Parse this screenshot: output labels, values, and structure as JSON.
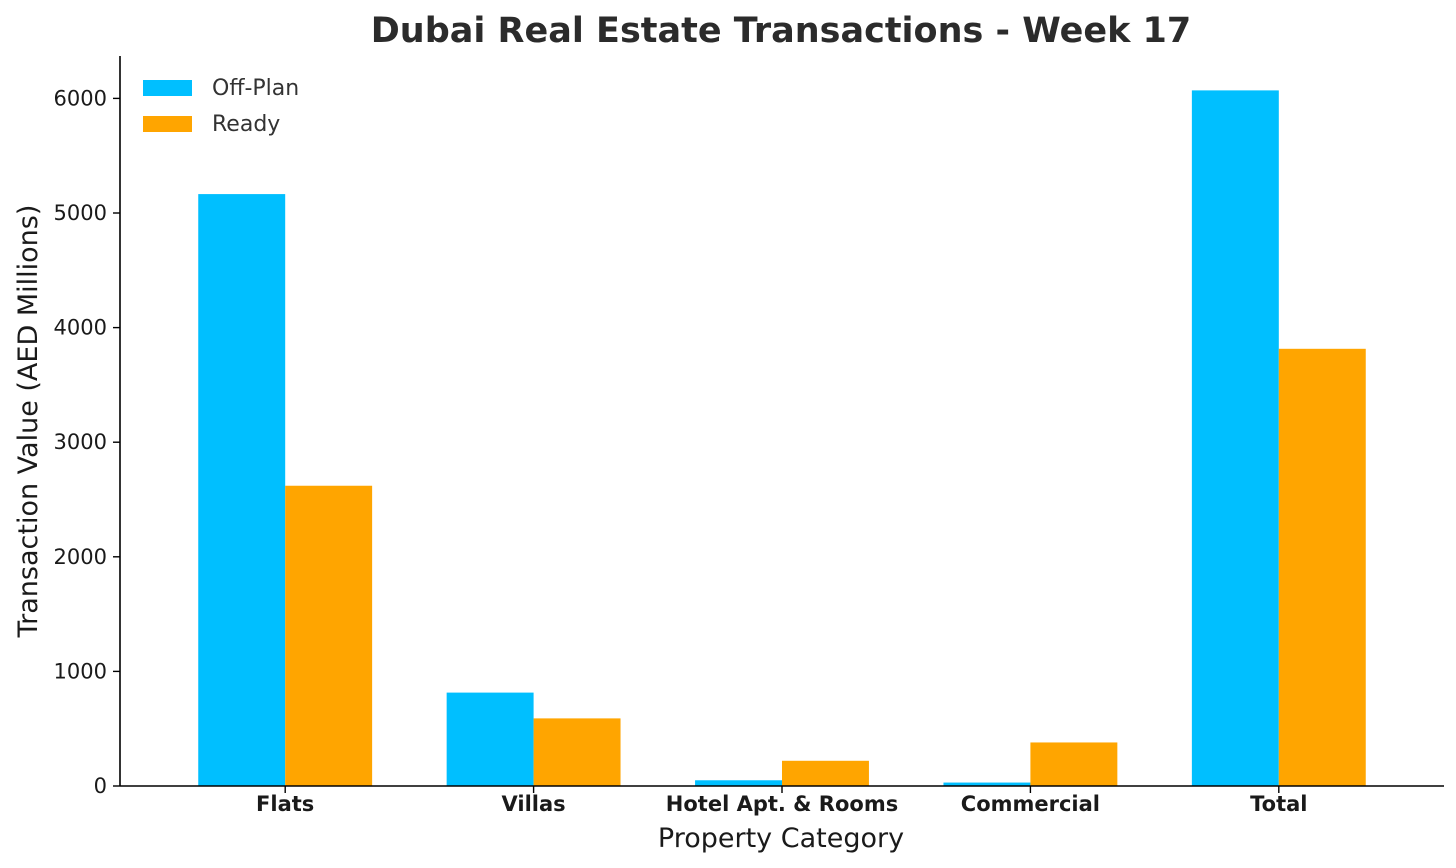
{
  "chart_data": {
    "type": "bar",
    "title": "Dubai Real Estate Transactions - Week 17",
    "xlabel": "Property Category",
    "ylabel": "Transaction Value (AED Millions)",
    "categories": [
      "Flats",
      "Villas",
      "Hotel Apt. & Rooms",
      "Commercial",
      "Total"
    ],
    "series": [
      {
        "name": "Off-Plan",
        "color": "#00BFFF",
        "values": [
          5165,
          815,
          50,
          30,
          6070
        ]
      },
      {
        "name": "Ready",
        "color": "#FFA500",
        "values": [
          2620,
          590,
          220,
          380,
          3815
        ]
      }
    ],
    "ylim": [
      0,
      6370
    ],
    "yticks": [
      0,
      1000,
      2000,
      3000,
      4000,
      5000,
      6000
    ],
    "grid": false,
    "legend_position": "top-left"
  }
}
